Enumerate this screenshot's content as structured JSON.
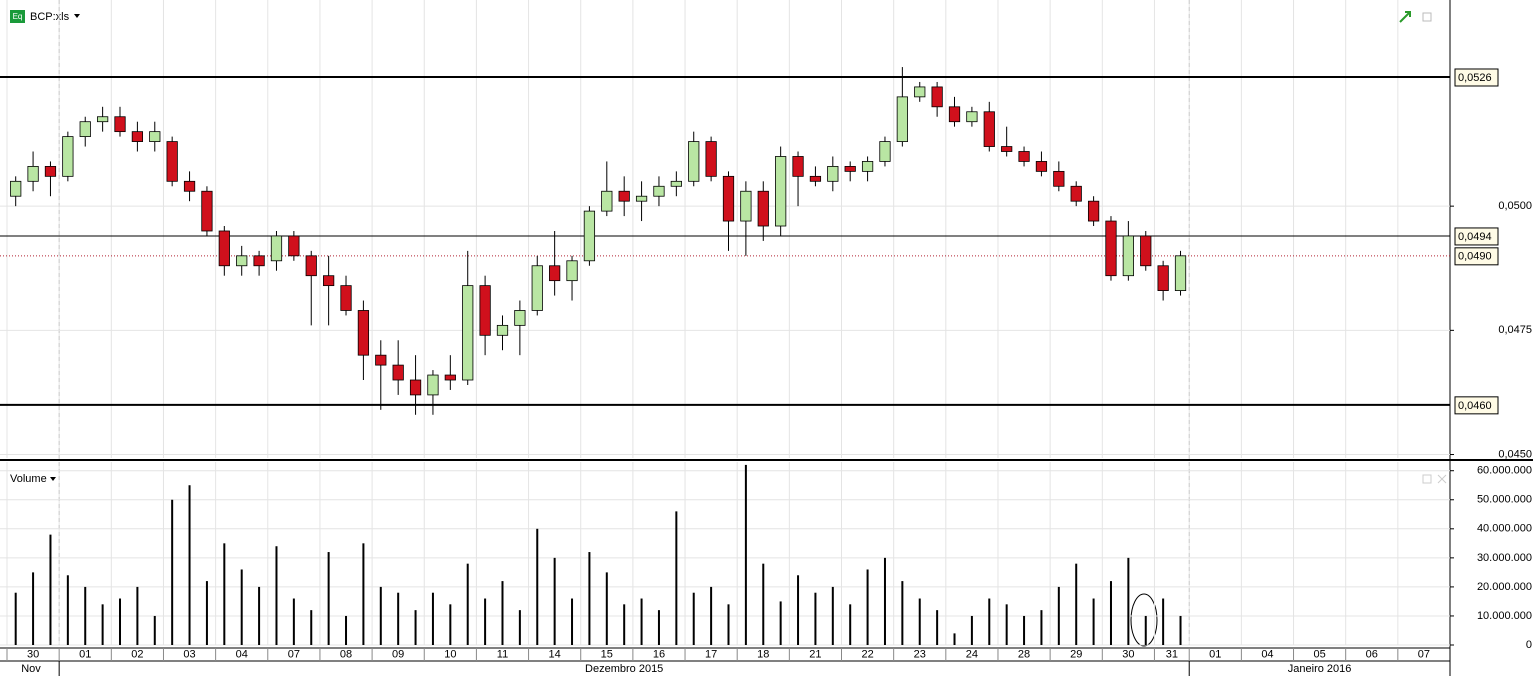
{
  "header": {
    "symbol": "BCP:xls"
  },
  "chart_data": [
    {
      "type": "candlestick",
      "categories": [
        "30",
        null,
        null,
        "01",
        null,
        null,
        "02",
        null,
        null,
        "03",
        null,
        null,
        "04",
        null,
        null,
        "07",
        null,
        null,
        "08",
        null,
        null,
        "09",
        null,
        null,
        "10",
        null,
        null,
        "11",
        null,
        null,
        "14",
        null,
        null,
        "15",
        null,
        null,
        "16",
        null,
        null,
        "17",
        null,
        null,
        "18",
        null,
        null,
        "21",
        null,
        null,
        "22",
        null,
        null,
        "23",
        null,
        null,
        "24",
        null,
        null,
        "28",
        null,
        null,
        "29",
        null,
        null,
        "30",
        null,
        null,
        "31",
        null,
        "01",
        null,
        null,
        "04",
        null,
        null,
        "05",
        null,
        null,
        "06",
        null,
        null,
        "07",
        null,
        null
      ],
      "months": [
        "Nov",
        "Dezembro 2015",
        "Janeiro 2016"
      ],
      "open": [
        0.0502,
        0.0505,
        0.0508,
        0.0506,
        0.0514,
        0.0517,
        0.0518,
        0.0515,
        0.0513,
        0.0513,
        0.0505,
        0.0503,
        0.0495,
        0.0488,
        0.049,
        0.0489,
        0.0494,
        0.049,
        0.0486,
        0.0484,
        0.0479,
        0.047,
        0.0468,
        0.0465,
        0.0462,
        0.0466,
        0.0465,
        0.0484,
        0.0474,
        0.0476,
        0.0479,
        0.0488,
        0.0485,
        0.0489,
        0.0499,
        0.0503,
        0.0501,
        0.0502,
        0.0504,
        0.0505,
        0.0513,
        0.0506,
        0.0497,
        0.0503,
        0.0496,
        0.051,
        0.0506,
        0.0505,
        0.0508,
        0.0507,
        0.0509,
        0.0513,
        0.0522,
        0.0524,
        0.052,
        0.0517,
        0.0519,
        0.0512,
        0.0511,
        0.0509,
        0.0507,
        0.0504,
        0.0501,
        0.0497,
        0.0486,
        0.0494,
        0.0488,
        0.0483,
        null,
        null,
        null,
        null,
        null,
        null,
        null,
        null,
        null,
        null,
        null,
        null,
        null,
        null,
        null
      ],
      "high": [
        0.0506,
        0.0511,
        0.0509,
        0.0515,
        0.0518,
        0.052,
        0.052,
        0.0517,
        0.0517,
        0.0514,
        0.0507,
        0.0504,
        0.0496,
        0.0492,
        0.0491,
        0.0495,
        0.0495,
        0.0491,
        0.049,
        0.0486,
        0.0481,
        0.0473,
        0.0473,
        0.047,
        0.0467,
        0.047,
        0.0491,
        0.0486,
        0.0478,
        0.0481,
        0.049,
        0.0495,
        0.049,
        0.05,
        0.0509,
        0.0506,
        0.0505,
        0.0506,
        0.0507,
        0.0515,
        0.0514,
        0.0507,
        0.0505,
        0.0505,
        0.0512,
        0.0511,
        0.0508,
        0.051,
        0.0509,
        0.051,
        0.0514,
        0.0528,
        0.0525,
        0.0525,
        0.0522,
        0.052,
        0.0521,
        0.0516,
        0.0512,
        0.0511,
        0.0509,
        0.0505,
        0.0502,
        0.0498,
        0.0497,
        0.0495,
        0.0489,
        0.0491,
        null,
        null,
        null,
        null,
        null,
        null,
        null,
        null,
        null,
        null,
        null,
        null,
        null,
        null,
        null
      ],
      "low": [
        0.05,
        0.0503,
        0.0502,
        0.0505,
        0.0512,
        0.0515,
        0.0514,
        0.0511,
        0.0511,
        0.0504,
        0.0501,
        0.0494,
        0.0486,
        0.0486,
        0.0486,
        0.0487,
        0.0489,
        0.0476,
        0.0476,
        0.0478,
        0.0465,
        0.0459,
        0.0462,
        0.0458,
        0.0458,
        0.0463,
        0.0464,
        0.047,
        0.0471,
        0.047,
        0.0478,
        0.0482,
        0.0481,
        0.0488,
        0.0498,
        0.0498,
        0.0497,
        0.05,
        0.0502,
        0.0504,
        0.0505,
        0.0491,
        0.049,
        0.0493,
        0.0494,
        0.05,
        0.0504,
        0.0503,
        0.0505,
        0.0505,
        0.0508,
        0.0512,
        0.0521,
        0.0518,
        0.0516,
        0.0516,
        0.0511,
        0.051,
        0.0508,
        0.0506,
        0.0503,
        0.05,
        0.0496,
        0.0485,
        0.0485,
        0.0487,
        0.0481,
        0.0482,
        null,
        null,
        null,
        null,
        null,
        null,
        null,
        null,
        null,
        null,
        null,
        null,
        null,
        null,
        null
      ],
      "close": [
        0.0505,
        0.0508,
        0.0506,
        0.0514,
        0.0517,
        0.0518,
        0.0515,
        0.0513,
        0.0515,
        0.0505,
        0.0503,
        0.0495,
        0.0488,
        0.049,
        0.0488,
        0.0494,
        0.049,
        0.0486,
        0.0484,
        0.0479,
        0.047,
        0.0468,
        0.0465,
        0.0462,
        0.0466,
        0.0465,
        0.0484,
        0.0474,
        0.0476,
        0.0479,
        0.0488,
        0.0485,
        0.0489,
        0.0499,
        0.0503,
        0.0501,
        0.0502,
        0.0504,
        0.0505,
        0.0513,
        0.0506,
        0.0497,
        0.0503,
        0.0496,
        0.051,
        0.0506,
        0.0505,
        0.0508,
        0.0507,
        0.0509,
        0.0513,
        0.0522,
        0.0524,
        0.052,
        0.0517,
        0.0519,
        0.0512,
        0.0511,
        0.0509,
        0.0507,
        0.0504,
        0.0501,
        0.0497,
        0.0486,
        0.0494,
        0.0488,
        0.0483,
        0.049,
        null,
        null,
        null,
        null,
        null,
        null,
        null,
        null,
        null,
        null,
        null,
        null,
        null,
        null,
        null
      ],
      "up_color": "#b9e6a3",
      "down_color": "#d0101c",
      "ylim": [
        0.04493,
        0.05415
      ],
      "yticks": [
        {
          "value": 0.045,
          "label": "0,0450"
        },
        {
          "value": 0.0475,
          "label": "0,0475"
        },
        {
          "value": 0.05,
          "label": "0,0500"
        }
      ],
      "hlines": [
        {
          "value": 0.0526,
          "label": "0,0526",
          "color": "#000000",
          "style": "thick"
        },
        {
          "value": 0.0494,
          "label": "0,0494",
          "color": "#000000",
          "style": "thin"
        },
        {
          "value": 0.049,
          "label": "0,0490",
          "color": "#b02030",
          "style": "dotted"
        },
        {
          "value": 0.046,
          "label": "0,0460",
          "color": "#000000",
          "style": "thick"
        }
      ],
      "grid": true
    },
    {
      "type": "bar",
      "title": "Volume",
      "color": "#000000",
      "values": [
        18000000,
        25000000,
        38000000,
        24000000,
        20000000,
        14000000,
        16000000,
        20000000,
        10000000,
        50000000,
        55000000,
        22000000,
        35000000,
        26000000,
        20000000,
        34000000,
        16000000,
        12000000,
        32000000,
        10000000,
        35000000,
        20000000,
        18000000,
        12000000,
        18000000,
        14000000,
        28000000,
        16000000,
        22000000,
        12000000,
        40000000,
        30000000,
        16000000,
        32000000,
        25000000,
        14000000,
        16000000,
        12000000,
        46000000,
        18000000,
        20000000,
        14000000,
        62000000,
        28000000,
        15000000,
        24000000,
        18000000,
        20000000,
        14000000,
        26000000,
        30000000,
        22000000,
        16000000,
        12000000,
        4000000,
        10000000,
        16000000,
        14000000,
        10000000,
        12000000,
        20000000,
        28000000,
        16000000,
        22000000,
        30000000,
        10000000,
        16000000,
        10000000,
        null,
        null,
        null,
        null,
        null,
        null,
        null,
        null,
        null,
        null,
        null,
        null,
        null,
        null,
        null
      ],
      "ylim": [
        0,
        63000000
      ],
      "yticks": [
        0,
        {
          "value": 10000000,
          "label": "10.000.000"
        },
        {
          "value": 20000000,
          "label": "20.000.000"
        },
        {
          "value": 30000000,
          "label": "30.000.000"
        },
        {
          "value": 40000000,
          "label": "40.000.000"
        },
        {
          "value": 50000000,
          "label": "50.000.000"
        },
        {
          "value": 60000000,
          "label": "60.000.000"
        }
      ],
      "grid": true
    }
  ]
}
